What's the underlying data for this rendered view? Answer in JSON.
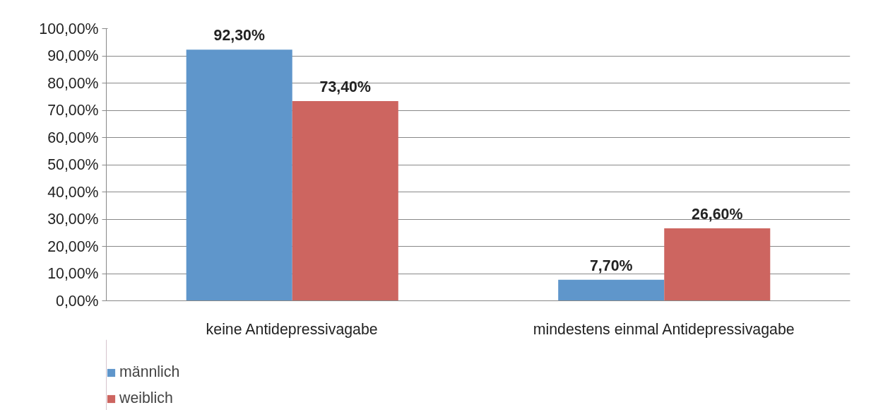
{
  "chart_data": {
    "type": "bar",
    "categories": [
      "keine Antidepressivagabe",
      "mindestens einmal Antidepressivagabe"
    ],
    "series": [
      {
        "name": "männlich",
        "color": "#5f96cb",
        "values": [
          92.3,
          7.7
        ],
        "value_labels": [
          "92,30%",
          "7,70%"
        ]
      },
      {
        "name": "weiblich",
        "color": "#cd6560",
        "values": [
          73.4,
          26.6
        ],
        "value_labels": [
          "73,40%",
          "26,60%"
        ]
      }
    ],
    "ylim": [
      0,
      100
    ],
    "yticks": [
      {
        "value": 0,
        "label": "0,00%"
      },
      {
        "value": 10,
        "label": "10,00%"
      },
      {
        "value": 20,
        "label": "20,00%"
      },
      {
        "value": 30,
        "label": "30,00%"
      },
      {
        "value": 40,
        "label": "40,00%"
      },
      {
        "value": 50,
        "label": "50,00%"
      },
      {
        "value": 60,
        "label": "60,00%"
      },
      {
        "value": 70,
        "label": "70,00%"
      },
      {
        "value": 80,
        "label": "80,00%"
      },
      {
        "value": 90,
        "label": "90,00%"
      },
      {
        "value": 100,
        "label": "100,00%"
      }
    ],
    "grid": "y",
    "legend": "bottom left"
  }
}
